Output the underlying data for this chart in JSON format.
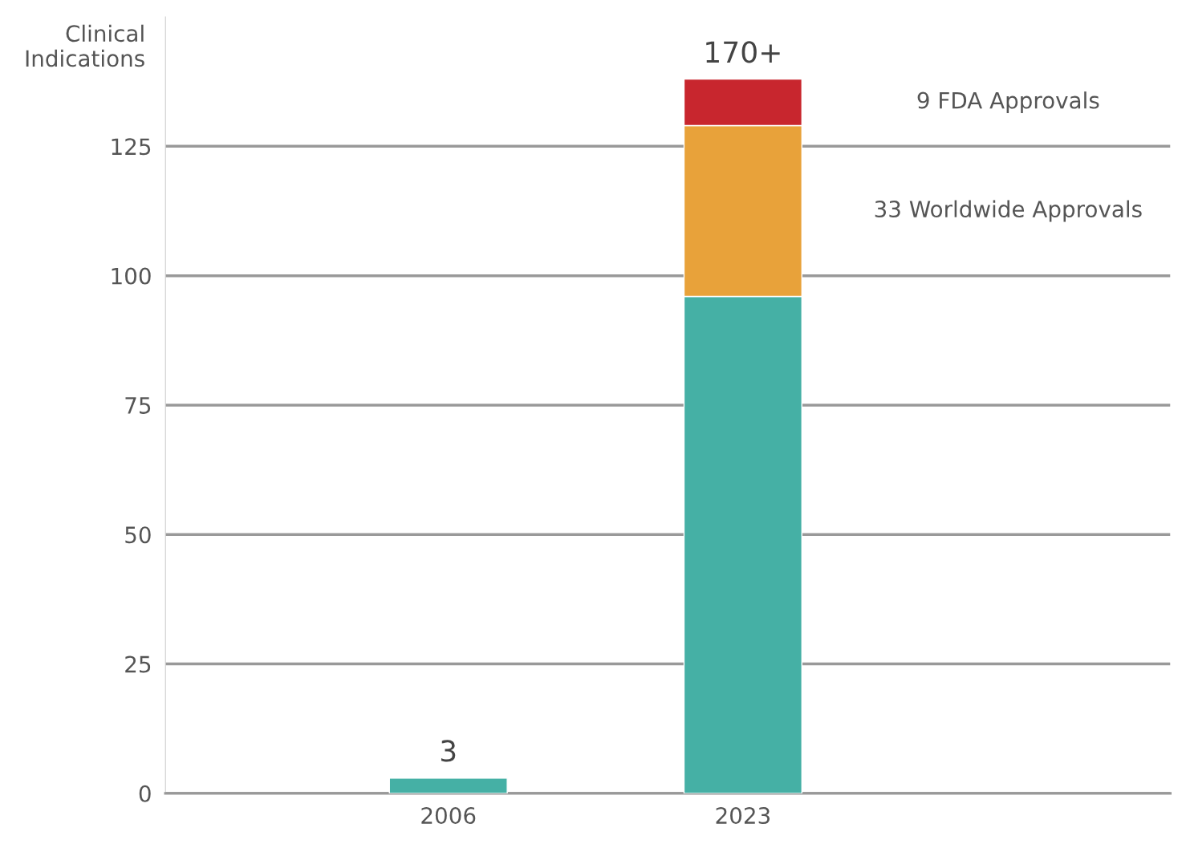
{
  "chart_data": {
    "type": "bar",
    "stacked": true,
    "ylabel": "Clinical\nIndications",
    "categories": [
      "2006",
      "2023"
    ],
    "series": [
      {
        "color": "#45b0a5",
        "values": [
          3,
          96
        ]
      },
      {
        "name": "33 Worldwide Approvals",
        "color": "#e8a23a",
        "values": [
          null,
          33
        ]
      },
      {
        "name": "9 FDA Approvals",
        "color": "#c8262e",
        "values": [
          null,
          9
        ]
      }
    ],
    "totals": [
      "3",
      "170+"
    ],
    "ylim": [
      0,
      150
    ],
    "yticks": [
      0,
      25,
      50,
      75,
      100,
      125
    ],
    "grid": "y"
  }
}
